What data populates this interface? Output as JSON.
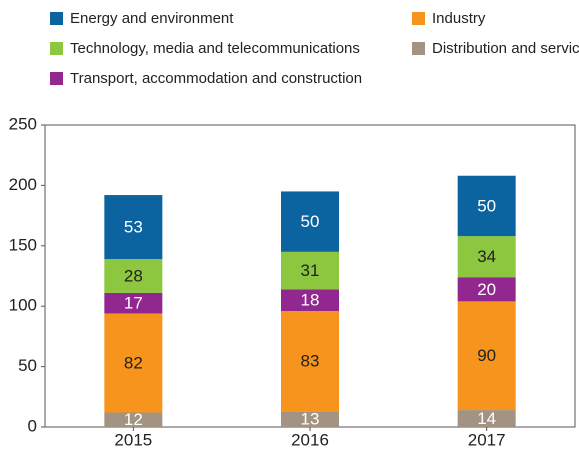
{
  "chart_data": {
    "type": "stacked-bar",
    "categories": [
      "2015",
      "2016",
      "2017"
    ],
    "series": [
      {
        "name": "Distribution and services",
        "color": "#a39382",
        "values": [
          12,
          13,
          14
        ]
      },
      {
        "name": "Industry",
        "color": "#f7941d",
        "values": [
          82,
          83,
          90
        ]
      },
      {
        "name": "Transport, accommodation and construction",
        "color": "#92278f",
        "values": [
          17,
          18,
          20
        ]
      },
      {
        "name": "Technology, media and telecommunications",
        "color": "#8dc63f",
        "values": [
          28,
          31,
          34
        ]
      },
      {
        "name": "Energy and environment",
        "color": "#0b64a0",
        "values": [
          53,
          50,
          50
        ]
      }
    ],
    "ylim": [
      0,
      250
    ],
    "yticks": [
      0,
      50,
      100,
      150,
      200,
      250
    ],
    "grid": false
  }
}
